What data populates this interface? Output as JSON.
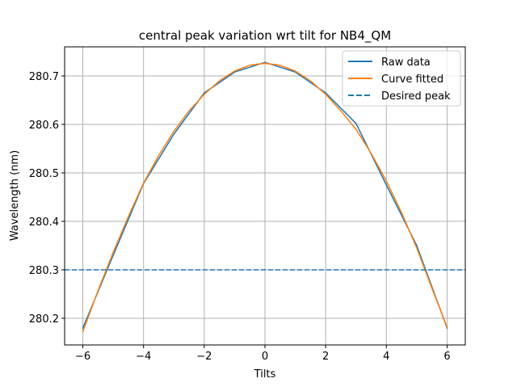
{
  "chart_data": {
    "type": "line",
    "title": "central peak variation wrt tilt for NB4_QM",
    "xlabel": "Tilts",
    "ylabel": "Wavelength (nm)",
    "xlim": [
      -6.6,
      6.6
    ],
    "ylim": [
      280.145,
      280.76
    ],
    "x_ticks": [
      -6,
      -4,
      -2,
      0,
      2,
      4,
      6
    ],
    "x_tick_labels": [
      "−6",
      "−4",
      "−2",
      "0",
      "2",
      "4",
      "6"
    ],
    "y_ticks": [
      280.2,
      280.3,
      280.4,
      280.5,
      280.6,
      280.7
    ],
    "y_tick_labels": [
      "280.2",
      "280.3",
      "280.4",
      "280.5",
      "280.6",
      "280.7"
    ],
    "grid": true,
    "legend_position": "top-right",
    "series": [
      {
        "name": "Raw data",
        "color": "#1f77b4",
        "style": "solid",
        "x": [
          -6,
          -5,
          -4,
          -3,
          -2,
          -1,
          0,
          1,
          2,
          3,
          4,
          5,
          6
        ],
        "y": [
          280.18,
          280.33,
          280.478,
          280.58,
          280.665,
          280.708,
          280.728,
          280.708,
          280.665,
          280.602,
          280.475,
          280.35,
          280.18
        ]
      },
      {
        "name": "Curve fitted",
        "color": "#ff7f0e",
        "style": "solid",
        "x": [
          -6,
          -5.5,
          -5,
          -4.5,
          -4,
          -3.5,
          -3,
          -2.5,
          -2,
          -1.5,
          -1,
          -0.5,
          0,
          0.5,
          1,
          1.5,
          2,
          2.5,
          3,
          3.5,
          4,
          4.5,
          5,
          5.5,
          6
        ],
        "y": [
          280.172,
          280.257,
          280.336,
          280.41,
          280.479,
          280.536,
          280.586,
          280.628,
          280.662,
          280.69,
          280.71,
          280.722,
          280.726,
          280.722,
          280.71,
          280.69,
          280.662,
          280.628,
          280.59,
          280.54,
          280.483,
          280.418,
          280.345,
          280.262,
          280.182
        ]
      },
      {
        "name": "Desired peak",
        "color": "#1f77b4",
        "style": "dashed",
        "y_const": 280.3
      }
    ]
  }
}
